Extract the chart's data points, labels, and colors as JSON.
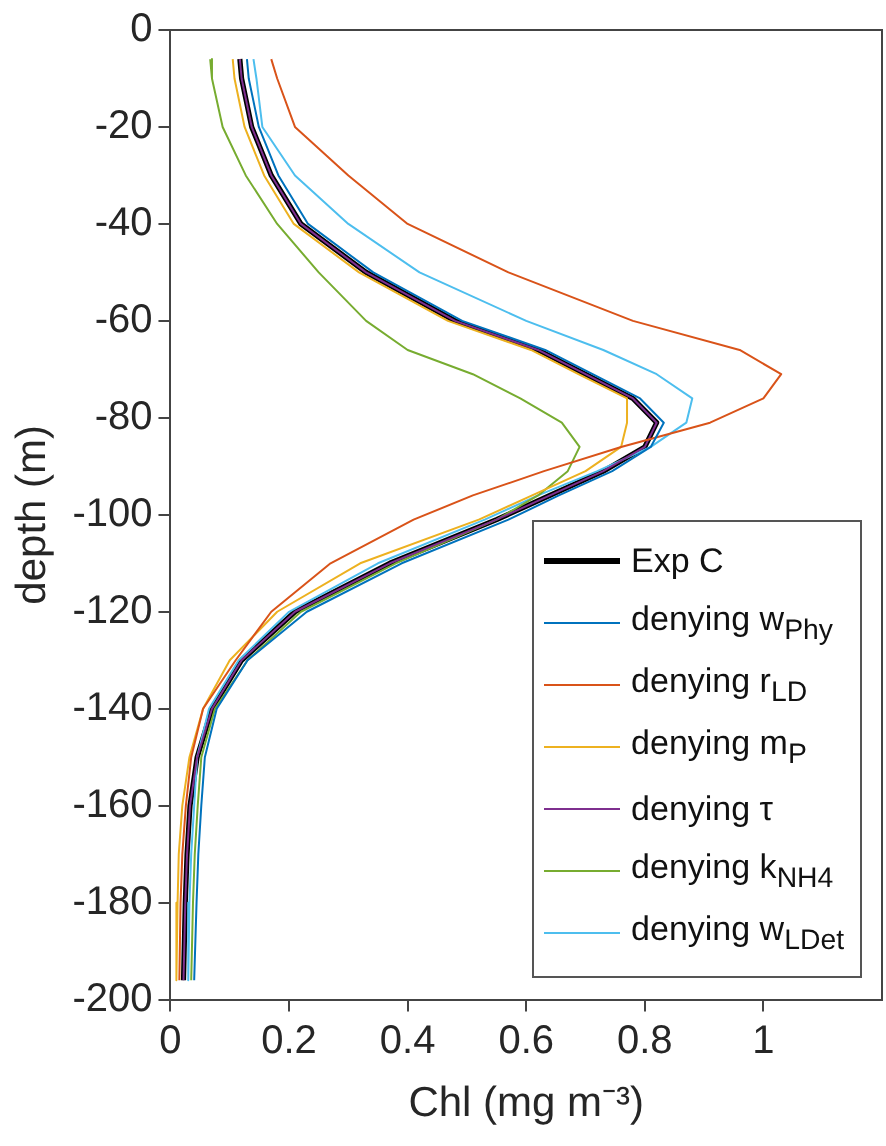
{
  "chart_data": {
    "type": "line",
    "xlabel": "Chl (mg m⁻³)",
    "ylabel": "depth (m)",
    "xlim": [
      0,
      1.2
    ],
    "xticks": [
      0,
      0.2,
      0.4,
      0.6,
      0.8,
      1
    ],
    "ylim": [
      -200,
      0
    ],
    "yticks": [
      0,
      -20,
      -40,
      -60,
      -80,
      -100,
      -120,
      -140,
      -160,
      -180,
      -200
    ],
    "grid": false,
    "legend": "bottom right",
    "series": [
      {
        "name": "Exp C",
        "color": "#000000",
        "x": [
          0.117,
          0.12,
          0.137,
          0.17,
          0.22,
          0.33,
          0.48,
          0.62,
          0.7,
          0.78,
          0.82,
          0.8,
          0.73,
          0.64,
          0.55,
          0.37,
          0.21,
          0.12,
          0.07,
          0.045,
          0.033,
          0.028,
          0.025,
          0.022
        ],
        "values": [
          -6,
          -10,
          -20,
          -30,
          -40,
          -50,
          -60,
          -66,
          -71,
          -76,
          -81,
          -86,
          -91,
          -96,
          -101,
          -110,
          -120,
          -130,
          -140,
          -150,
          -160,
          -170,
          -180,
          -196
        ]
      },
      {
        "name": "denying w$_{Phy}$",
        "color": "#0072bd",
        "x": [
          0.129,
          0.132,
          0.149,
          0.182,
          0.232,
          0.342,
          0.492,
          0.632,
          0.712,
          0.792,
          0.832,
          0.81,
          0.745,
          0.655,
          0.57,
          0.39,
          0.23,
          0.13,
          0.078,
          0.058,
          0.052,
          0.047,
          0.044,
          0.04
        ],
        "values": [
          -6,
          -10,
          -20,
          -30,
          -40,
          -50,
          -60,
          -66,
          -71,
          -76,
          -81,
          -86,
          -91,
          -96,
          -101,
          -110,
          -120,
          -130,
          -140,
          -150,
          -160,
          -170,
          -180,
          -196
        ]
      },
      {
        "name": "denying r$_{LD}$",
        "color": "#d95319",
        "x": [
          0.17,
          0.18,
          0.21,
          0.3,
          0.4,
          0.57,
          0.78,
          0.96,
          1.03,
          1,
          0.91,
          0.76,
          0.63,
          0.51,
          0.41,
          0.27,
          0.17,
          0.11,
          0.055,
          0.035,
          0.026,
          0.02,
          0.017,
          0.015
        ],
        "values": [
          -6,
          -10,
          -20,
          -30,
          -40,
          -50,
          -60,
          -66,
          -71,
          -76,
          -81,
          -86,
          -91,
          -96,
          -101,
          -110,
          -120,
          -130,
          -140,
          -150,
          -160,
          -170,
          -180,
          -196
        ]
      },
      {
        "name": "denying m$_{P}$",
        "color": "#edb120",
        "x": [
          0.105,
          0.108,
          0.125,
          0.158,
          0.208,
          0.318,
          0.468,
          0.608,
          0.688,
          0.77,
          0.77,
          0.76,
          0.7,
          0.61,
          0.52,
          0.32,
          0.18,
          0.1,
          0.055,
          0.032,
          0.02,
          0.014,
          0.012,
          0.01
        ],
        "values": [
          -6,
          -10,
          -20,
          -30,
          -40,
          -50,
          -60,
          -66,
          -71,
          -76,
          -81,
          -86,
          -91,
          -96,
          -101,
          -110,
          -120,
          -130,
          -140,
          -150,
          -160,
          -170,
          -180,
          -196
        ]
      },
      {
        "name": "denying τ",
        "color": "#7e2f8e",
        "x": [
          0.117,
          0.12,
          0.137,
          0.17,
          0.22,
          0.33,
          0.48,
          0.62,
          0.7,
          0.78,
          0.82,
          0.8,
          0.73,
          0.64,
          0.55,
          0.37,
          0.21,
          0.12,
          0.07,
          0.045,
          0.033,
          0.028,
          0.025,
          0.022
        ],
        "values": [
          -6,
          -10,
          -20,
          -30,
          -40,
          -50,
          -60,
          -66,
          -71,
          -76,
          -81,
          -86,
          -91,
          -96,
          -101,
          -110,
          -120,
          -130,
          -140,
          -150,
          -160,
          -170,
          -180,
          -196
        ]
      },
      {
        "name": "denying k$_{NH4}$",
        "color": "#77ac30",
        "x": [
          0.067,
          0.07,
          0.088,
          0.127,
          0.18,
          0.25,
          0.33,
          0.4,
          0.51,
          0.59,
          0.66,
          0.69,
          0.67,
          0.62,
          0.55,
          0.38,
          0.22,
          0.13,
          0.075,
          0.052,
          0.046,
          0.041,
          0.038,
          0.035
        ],
        "values": [
          -6,
          -10,
          -20,
          -30,
          -40,
          -50,
          -60,
          -66,
          -71,
          -76,
          -81,
          -86,
          -91,
          -96,
          -101,
          -110,
          -120,
          -130,
          -140,
          -150,
          -160,
          -170,
          -180,
          -196
        ]
      },
      {
        "name": "denying w$_{LDet}$",
        "color": "#4dbeee",
        "x": [
          0.14,
          0.145,
          0.155,
          0.21,
          0.3,
          0.42,
          0.6,
          0.73,
          0.82,
          0.88,
          0.87,
          0.81,
          0.72,
          0.62,
          0.53,
          0.35,
          0.2,
          0.115,
          0.065,
          0.045,
          0.04,
          0.035,
          0.032,
          0.03
        ],
        "values": [
          -6,
          -10,
          -20,
          -30,
          -40,
          -50,
          -60,
          -66,
          -71,
          -76,
          -81,
          -86,
          -91,
          -96,
          -101,
          -110,
          -120,
          -130,
          -140,
          -150,
          -160,
          -170,
          -180,
          -196
        ]
      }
    ]
  }
}
